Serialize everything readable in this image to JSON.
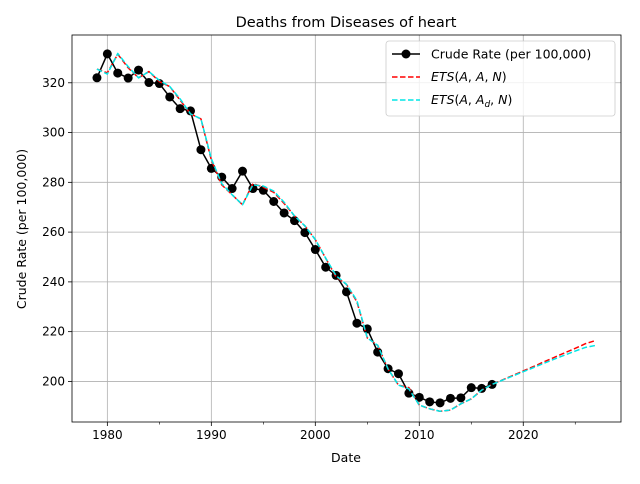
{
  "chart_data": {
    "type": "line",
    "title": "Deaths from Diseases of heart",
    "xlabel": "Date",
    "ylabel": "Crude Rate (per 100,000)",
    "xlim": [
      1976.6,
      2029.4
    ],
    "ylim": [
      183.7,
      339.2
    ],
    "x_ticks": [
      1980,
      1990,
      2000,
      2010,
      2020
    ],
    "x_tick_labels": [
      "1980",
      "1990",
      "2000",
      "2010",
      "2020"
    ],
    "x_minor_ticks": [
      1985,
      1995,
      2005,
      2015,
      2025
    ],
    "y_ticks": [
      200,
      220,
      240,
      260,
      280,
      300,
      320
    ],
    "y_tick_labels": [
      "200",
      "220",
      "240",
      "260",
      "280",
      "300",
      "320"
    ],
    "grid": true,
    "legend_position": "top-right",
    "series": [
      {
        "name": "Crude Rate (per 100,000)",
        "color": "#000000",
        "style": "solid-markers",
        "x": [
          1979,
          1980,
          1981,
          1982,
          1983,
          1984,
          1985,
          1986,
          1987,
          1988,
          1989,
          1990,
          1991,
          1992,
          1993,
          1994,
          1995,
          1996,
          1997,
          1998,
          1999,
          2000,
          2001,
          2002,
          2003,
          2004,
          2005,
          2006,
          2007,
          2008,
          2009,
          2010,
          2011,
          2012,
          2013,
          2014,
          2015,
          2016,
          2017
        ],
        "values": [
          322.0,
          331.6,
          323.9,
          321.9,
          325.1,
          320.1,
          319.7,
          314.3,
          309.6,
          308.7,
          293.1,
          285.6,
          282.1,
          277.5,
          284.5,
          277.5,
          276.8,
          272.3,
          267.7,
          264.6,
          259.8,
          253.0,
          245.9,
          242.6,
          236.0,
          223.4,
          221.1,
          211.8,
          205.1,
          203.1,
          195.3,
          193.6,
          191.8,
          191.4,
          193.2,
          193.4,
          197.5,
          197.2,
          198.8
        ]
      },
      {
        "name": "ETS(A,A,N)",
        "color": "#ff0000",
        "style": "dashed",
        "x": [
          1979,
          1980,
          1981,
          1982,
          1983,
          1984,
          1985,
          1986,
          1987,
          1988,
          1989,
          1990,
          1991,
          1992,
          1993,
          1994,
          1995,
          1996,
          1997,
          1998,
          1999,
          2000,
          2001,
          2002,
          2003,
          2004,
          2005,
          2006,
          2007,
          2008,
          2009,
          2010,
          2011,
          2012,
          2013,
          2014,
          2015,
          2016,
          2017,
          2018,
          2019,
          2020,
          2021,
          2022,
          2023,
          2024,
          2025,
          2026,
          2027
        ],
        "values": [
          325.5,
          324.0,
          331.5,
          326.0,
          322.0,
          324.5,
          320.5,
          318.5,
          313.0,
          307.5,
          305.5,
          289.0,
          279.0,
          275.0,
          271.0,
          279.5,
          278.0,
          276.0,
          271.5,
          266.5,
          262.5,
          257.0,
          249.5,
          242.0,
          239.0,
          232.0,
          217.5,
          214.5,
          205.0,
          198.5,
          197.5,
          190.5,
          189.0,
          188.0,
          188.5,
          191.0,
          193.0,
          196.5,
          198.8,
          200.6,
          202.4,
          204.2,
          206.0,
          207.9,
          209.7,
          211.5,
          213.3,
          215.2,
          216.5
        ]
      },
      {
        "name": "ETS(A,Ad,N)",
        "color": "#00e5e5",
        "style": "dashed",
        "x": [
          1979,
          1980,
          1981,
          1982,
          1983,
          1984,
          1985,
          1986,
          1987,
          1988,
          1989,
          1990,
          1991,
          1992,
          1993,
          1994,
          1995,
          1996,
          1997,
          1998,
          1999,
          2000,
          2001,
          2002,
          2003,
          2004,
          2005,
          2006,
          2007,
          2008,
          2009,
          2010,
          2011,
          2012,
          2013,
          2014,
          2015,
          2016,
          2017,
          2018,
          2019,
          2020,
          2021,
          2022,
          2023,
          2024,
          2025,
          2026,
          2027
        ],
        "values": [
          325.5,
          323.5,
          331.8,
          326.5,
          322.0,
          324.5,
          321.0,
          318.5,
          313.5,
          307.5,
          305.5,
          289.5,
          279.5,
          275.0,
          271.0,
          279.0,
          278.5,
          276.5,
          272.0,
          266.5,
          262.5,
          257.0,
          249.5,
          242.5,
          239.0,
          232.5,
          217.5,
          214.5,
          205.0,
          198.5,
          197.0,
          190.5,
          189.0,
          188.0,
          188.5,
          191.0,
          193.0,
          196.5,
          198.8,
          200.5,
          202.2,
          203.9,
          205.6,
          207.3,
          209.0,
          210.6,
          212.2,
          213.7,
          214.5
        ]
      }
    ]
  }
}
